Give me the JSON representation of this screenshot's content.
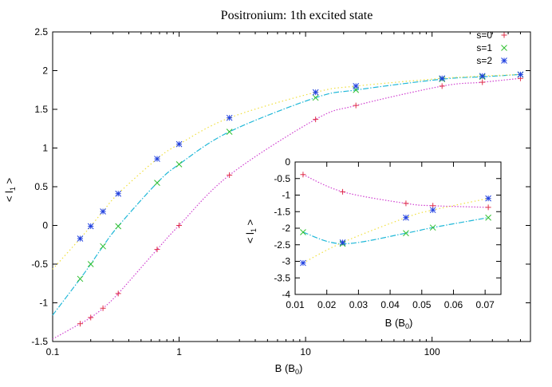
{
  "chart_data": [
    {
      "type": "scatter",
      "title": "Positronium: 1th excited state",
      "xlabel": "B (B_0)",
      "ylabel": "< l_1 >",
      "xscale": "log",
      "xlim": [
        0.1,
        600
      ],
      "ylim": [
        -1.5,
        2.5
      ],
      "xticks": [
        "0.1",
        "1",
        "10",
        "100"
      ],
      "yticks": [
        "-1.5",
        "-1",
        "-0.5",
        "0",
        "0.5",
        "1",
        "1.5",
        "2",
        "2.5"
      ],
      "legend": "top-right",
      "series": [
        {
          "name": "s=0",
          "marker": "+",
          "color": "#e0304a",
          "fit_color": "#d040d0",
          "points": [
            [
              0.165,
              -1.27
            ],
            [
              0.2,
              -1.19
            ],
            [
              0.25,
              -1.07
            ],
            [
              0.33,
              -0.88
            ],
            [
              0.67,
              -0.31
            ],
            [
              1.0,
              0.0
            ],
            [
              2.5,
              0.65
            ],
            [
              12.0,
              1.37
            ],
            [
              25.0,
              1.55
            ],
            [
              120.0,
              1.8
            ],
            [
              250.0,
              1.85
            ],
            [
              500.0,
              1.9
            ]
          ]
        },
        {
          "name": "s=1",
          "marker": "x",
          "color": "#30c030",
          "fit_color": "#20b8d8",
          "points": [
            [
              0.165,
              -0.69
            ],
            [
              0.2,
              -0.5
            ],
            [
              0.25,
              -0.27
            ],
            [
              0.33,
              -0.01
            ],
            [
              0.67,
              0.55
            ],
            [
              1.0,
              0.79
            ],
            [
              2.5,
              1.21
            ],
            [
              12.0,
              1.65
            ],
            [
              25.0,
              1.75
            ],
            [
              120.0,
              1.89
            ],
            [
              250.0,
              1.92
            ],
            [
              500.0,
              1.95
            ]
          ]
        },
        {
          "name": "s=2",
          "marker": "*",
          "color": "#2040e0",
          "fit_color": "#f0e040",
          "points": [
            [
              0.165,
              -0.17
            ],
            [
              0.2,
              -0.01
            ],
            [
              0.25,
              0.18
            ],
            [
              0.33,
              0.41
            ],
            [
              0.67,
              0.86
            ],
            [
              1.0,
              1.05
            ],
            [
              2.5,
              1.39
            ],
            [
              12.0,
              1.72
            ],
            [
              25.0,
              1.8
            ],
            [
              120.0,
              1.9
            ],
            [
              250.0,
              1.93
            ],
            [
              500.0,
              1.95
            ]
          ]
        }
      ]
    },
    {
      "type": "scatter",
      "title": "",
      "xlabel": "B (B_0)",
      "ylabel": "< l_1 >",
      "xlim": [
        0.01,
        0.075
      ],
      "ylim": [
        -4,
        0
      ],
      "xticks": [
        "0.01",
        "0.02",
        "0.03",
        "0.04",
        "0.05",
        "0.06",
        "0.07"
      ],
      "yticks": [
        "-4",
        "-3.5",
        "-3",
        "-2.5",
        "-2",
        "-1.5",
        "-1",
        "-0.5",
        "0"
      ],
      "series": [
        {
          "name": "s=0",
          "marker": "+",
          "color": "#e0304a",
          "fit_color": "#d040d0",
          "points": [
            [
              0.0125,
              -0.38
            ],
            [
              0.025,
              -0.9
            ],
            [
              0.045,
              -1.25
            ],
            [
              0.0535,
              -1.32
            ],
            [
              0.071,
              -1.37
            ]
          ]
        },
        {
          "name": "s=1",
          "marker": "x",
          "color": "#30c030",
          "fit_color": "#20b8d8",
          "points": [
            [
              0.0125,
              -2.12
            ],
            [
              0.025,
              -2.47
            ],
            [
              0.045,
              -2.15
            ],
            [
              0.0535,
              -1.98
            ],
            [
              0.071,
              -1.68
            ]
          ]
        },
        {
          "name": "s=2",
          "marker": "*",
          "color": "#2040e0",
          "fit_color": "#f0e040",
          "points": [
            [
              0.0125,
              -3.05
            ],
            [
              0.025,
              -2.43
            ],
            [
              0.045,
              -1.68
            ],
            [
              0.0535,
              -1.45
            ],
            [
              0.071,
              -1.1
            ]
          ]
        }
      ]
    }
  ]
}
